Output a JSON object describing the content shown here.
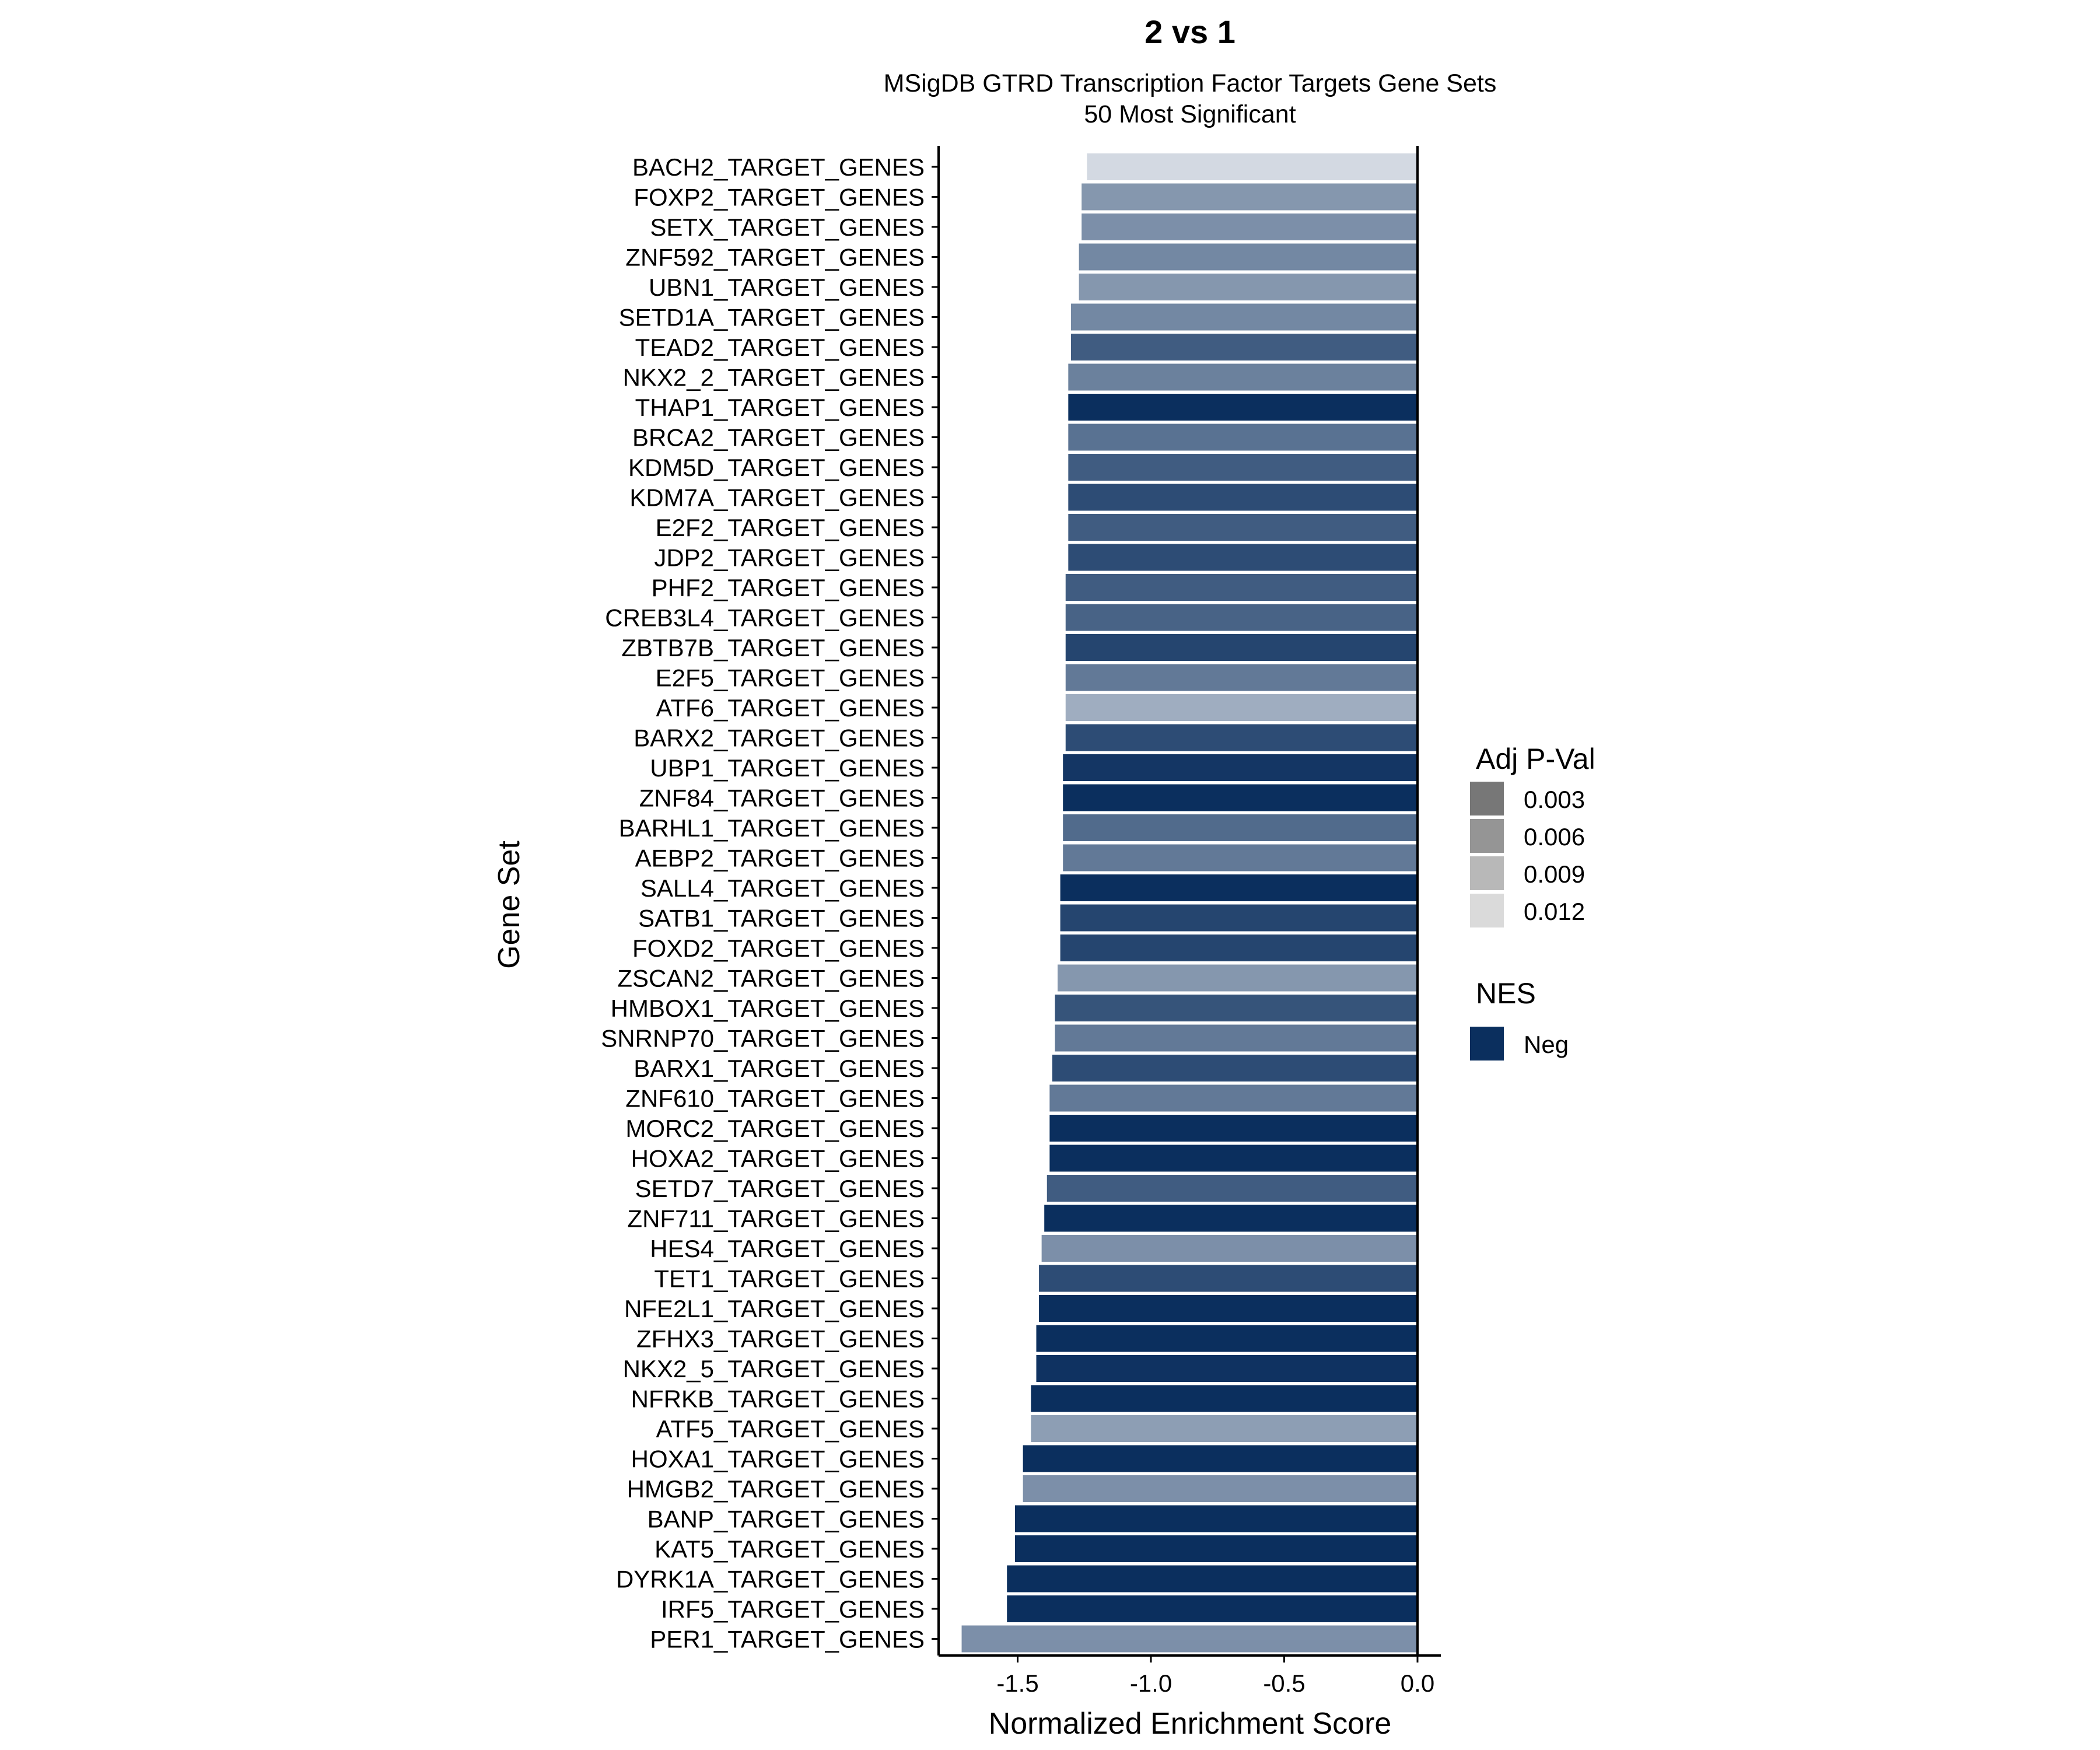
{
  "chart_data": {
    "type": "bar",
    "orientation": "horizontal",
    "title": "2 vs 1",
    "subtitle": [
      "MSigDB GTRD Transcription Factor Targets Gene Sets",
      "50 Most Significant"
    ],
    "xlabel": "Normalized Enrichment Score",
    "ylabel": "Gene Set",
    "xlim": [
      -1.78,
      0.08
    ],
    "xticks": [
      -1.5,
      -1.0,
      -0.5,
      0.0
    ],
    "xtick_labels": [
      "-1.5",
      "-1.0",
      "-0.5",
      "0.0"
    ],
    "grid": false,
    "legend": {
      "position": "right",
      "alpha_title": "Adj P-Val",
      "alpha_entries": [
        {
          "label": "0.003",
          "grey": "#777777"
        },
        {
          "label": "0.006",
          "grey": "#959595"
        },
        {
          "label": "0.009",
          "grey": "#b8b8b8"
        },
        {
          "label": "0.012",
          "grey": "#dadada"
        }
      ],
      "fill_title": "NES",
      "fill_entries": [
        {
          "label": "Neg",
          "color": "#0b2f5e"
        }
      ]
    },
    "colors": {
      "Neg": "#0b2f5e"
    },
    "categories": [
      "BACH2_TARGET_GENES",
      "FOXP2_TARGET_GENES",
      "SETX_TARGET_GENES",
      "ZNF592_TARGET_GENES",
      "UBN1_TARGET_GENES",
      "SETD1A_TARGET_GENES",
      "TEAD2_TARGET_GENES",
      "NKX2_2_TARGET_GENES",
      "THAP1_TARGET_GENES",
      "BRCA2_TARGET_GENES",
      "KDM5D_TARGET_GENES",
      "KDM7A_TARGET_GENES",
      "E2F2_TARGET_GENES",
      "JDP2_TARGET_GENES",
      "PHF2_TARGET_GENES",
      "CREB3L4_TARGET_GENES",
      "ZBTB7B_TARGET_GENES",
      "E2F5_TARGET_GENES",
      "ATF6_TARGET_GENES",
      "BARX2_TARGET_GENES",
      "UBP1_TARGET_GENES",
      "ZNF84_TARGET_GENES",
      "BARHL1_TARGET_GENES",
      "AEBP2_TARGET_GENES",
      "SALL4_TARGET_GENES",
      "SATB1_TARGET_GENES",
      "FOXD2_TARGET_GENES",
      "ZSCAN2_TARGET_GENES",
      "HMBOX1_TARGET_GENES",
      "SNRNP70_TARGET_GENES",
      "BARX1_TARGET_GENES",
      "ZNF610_TARGET_GENES",
      "MORC2_TARGET_GENES",
      "HOXA2_TARGET_GENES",
      "SETD7_TARGET_GENES",
      "ZNF711_TARGET_GENES",
      "HES4_TARGET_GENES",
      "TET1_TARGET_GENES",
      "NFE2L1_TARGET_GENES",
      "ZFHX3_TARGET_GENES",
      "NKX2_5_TARGET_GENES",
      "NFRKB_TARGET_GENES",
      "ATF5_TARGET_GENES",
      "HOXA1_TARGET_GENES",
      "HMGB2_TARGET_GENES",
      "BANP_TARGET_GENES",
      "KAT5_TARGET_GENES",
      "DYRK1A_TARGET_GENES",
      "IRF5_TARGET_GENES",
      "PER1_TARGET_GENES"
    ],
    "values": [
      -1.24,
      -1.26,
      -1.26,
      -1.27,
      -1.27,
      -1.3,
      -1.3,
      -1.31,
      -1.31,
      -1.31,
      -1.31,
      -1.31,
      -1.31,
      -1.31,
      -1.32,
      -1.32,
      -1.32,
      -1.32,
      -1.32,
      -1.32,
      -1.33,
      -1.33,
      -1.33,
      -1.33,
      -1.34,
      -1.34,
      -1.34,
      -1.35,
      -1.36,
      -1.36,
      -1.37,
      -1.38,
      -1.38,
      -1.38,
      -1.39,
      -1.4,
      -1.41,
      -1.42,
      -1.42,
      -1.43,
      -1.43,
      -1.45,
      -1.45,
      -1.48,
      -1.48,
      -1.51,
      -1.51,
      -1.54,
      -1.54,
      -1.71
    ],
    "adj_pval": [
      0.0125,
      0.008,
      0.0075,
      0.007,
      0.008,
      0.007,
      0.004,
      0.0065,
      0.001,
      0.0055,
      0.004,
      0.003,
      0.004,
      0.003,
      0.004,
      0.0045,
      0.0025,
      0.006,
      0.0095,
      0.003,
      0.0015,
      0.001,
      0.005,
      0.006,
      0.001,
      0.0025,
      0.0025,
      0.008,
      0.0035,
      0.006,
      0.003,
      0.006,
      0.001,
      0.001,
      0.004,
      0.001,
      0.0075,
      0.003,
      0.001,
      0.001,
      0.0012,
      0.001,
      0.0085,
      0.001,
      0.0075,
      0.001,
      0.001,
      0.001,
      0.001,
      0.0075
    ],
    "nes_group": "Neg"
  }
}
